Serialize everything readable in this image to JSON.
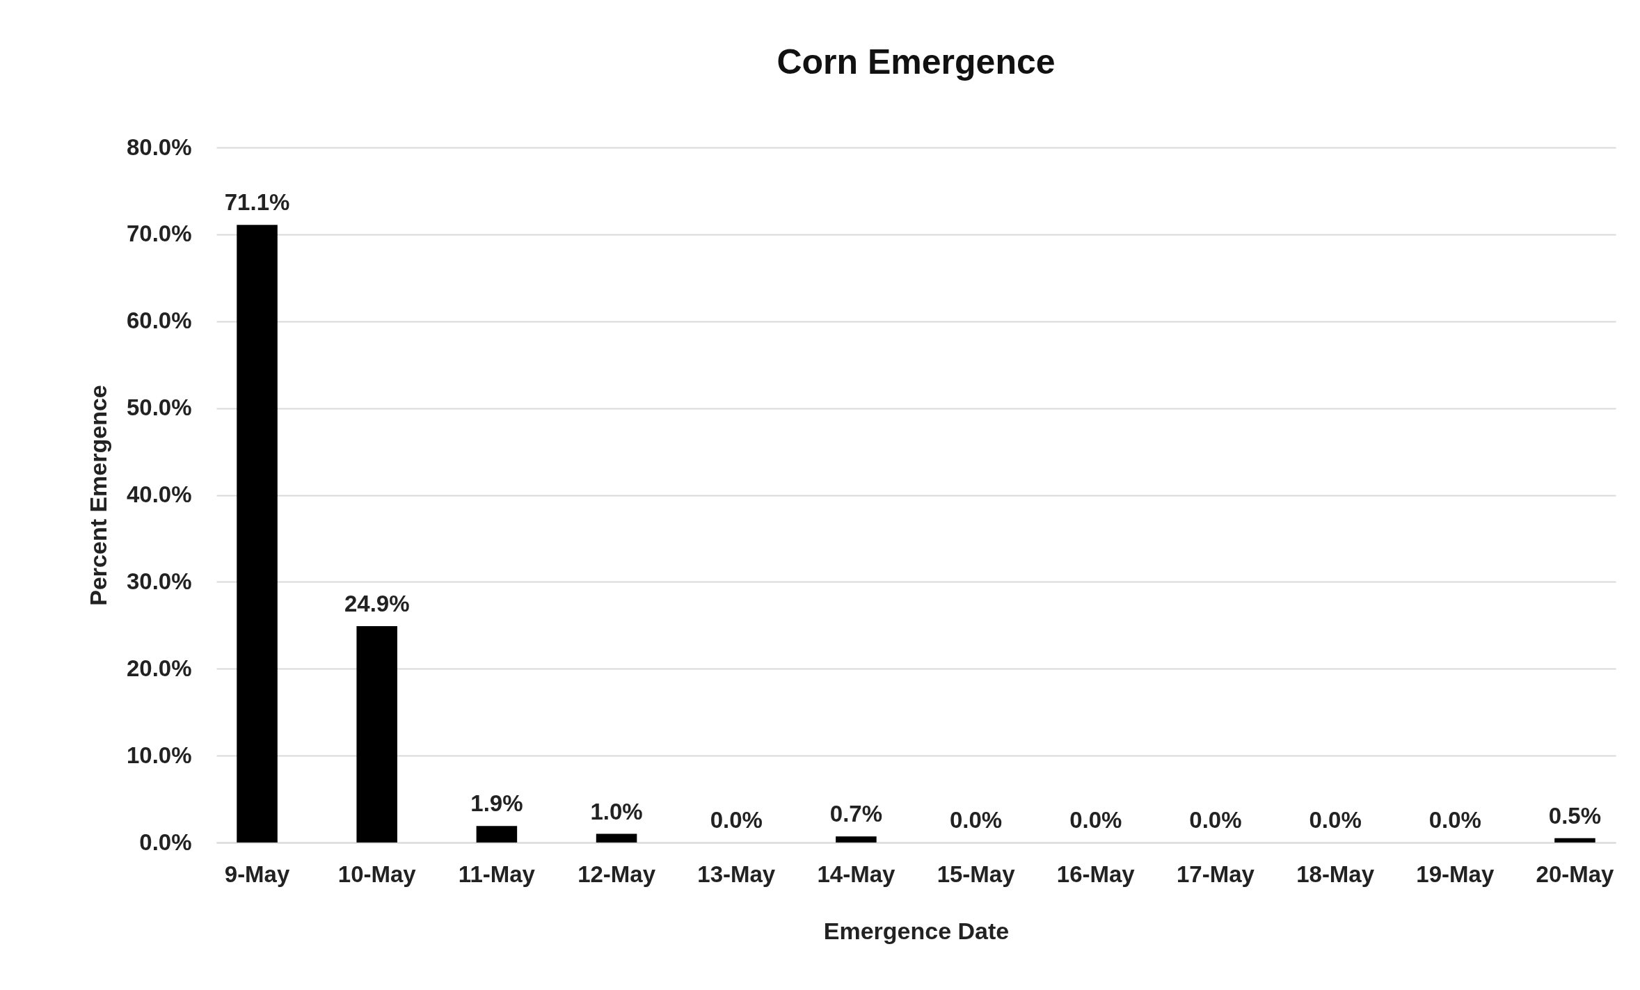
{
  "chart_data": {
    "type": "bar",
    "title": "Corn Emergence",
    "xlabel": "Emergence Date",
    "ylabel": "Percent Emergence",
    "categories": [
      "9-May",
      "10-May",
      "11-May",
      "12-May",
      "13-May",
      "14-May",
      "15-May",
      "16-May",
      "17-May",
      "18-May",
      "19-May",
      "20-May"
    ],
    "values": [
      71.1,
      24.9,
      1.9,
      1.0,
      0.0,
      0.7,
      0.0,
      0.0,
      0.0,
      0.0,
      0.0,
      0.5
    ],
    "value_labels": [
      "71.1%",
      "24.9%",
      "1.9%",
      "1.0%",
      "0.0%",
      "0.7%",
      "0.0%",
      "0.0%",
      "0.0%",
      "0.0%",
      "0.0%",
      "0.5%"
    ],
    "color": "#000000",
    "ylim": [
      0,
      80
    ],
    "yticks": [
      {
        "value": 0,
        "label": "0.0%"
      },
      {
        "value": 10,
        "label": "10.0%"
      },
      {
        "value": 20,
        "label": "20.0%"
      },
      {
        "value": 30,
        "label": "30.0%"
      },
      {
        "value": 40,
        "label": "40.0%"
      },
      {
        "value": 50,
        "label": "50.0%"
      },
      {
        "value": 60,
        "label": "60.0%"
      },
      {
        "value": 70,
        "label": "70.0%"
      },
      {
        "value": 80,
        "label": "80.0%"
      }
    ],
    "grid": "y"
  }
}
